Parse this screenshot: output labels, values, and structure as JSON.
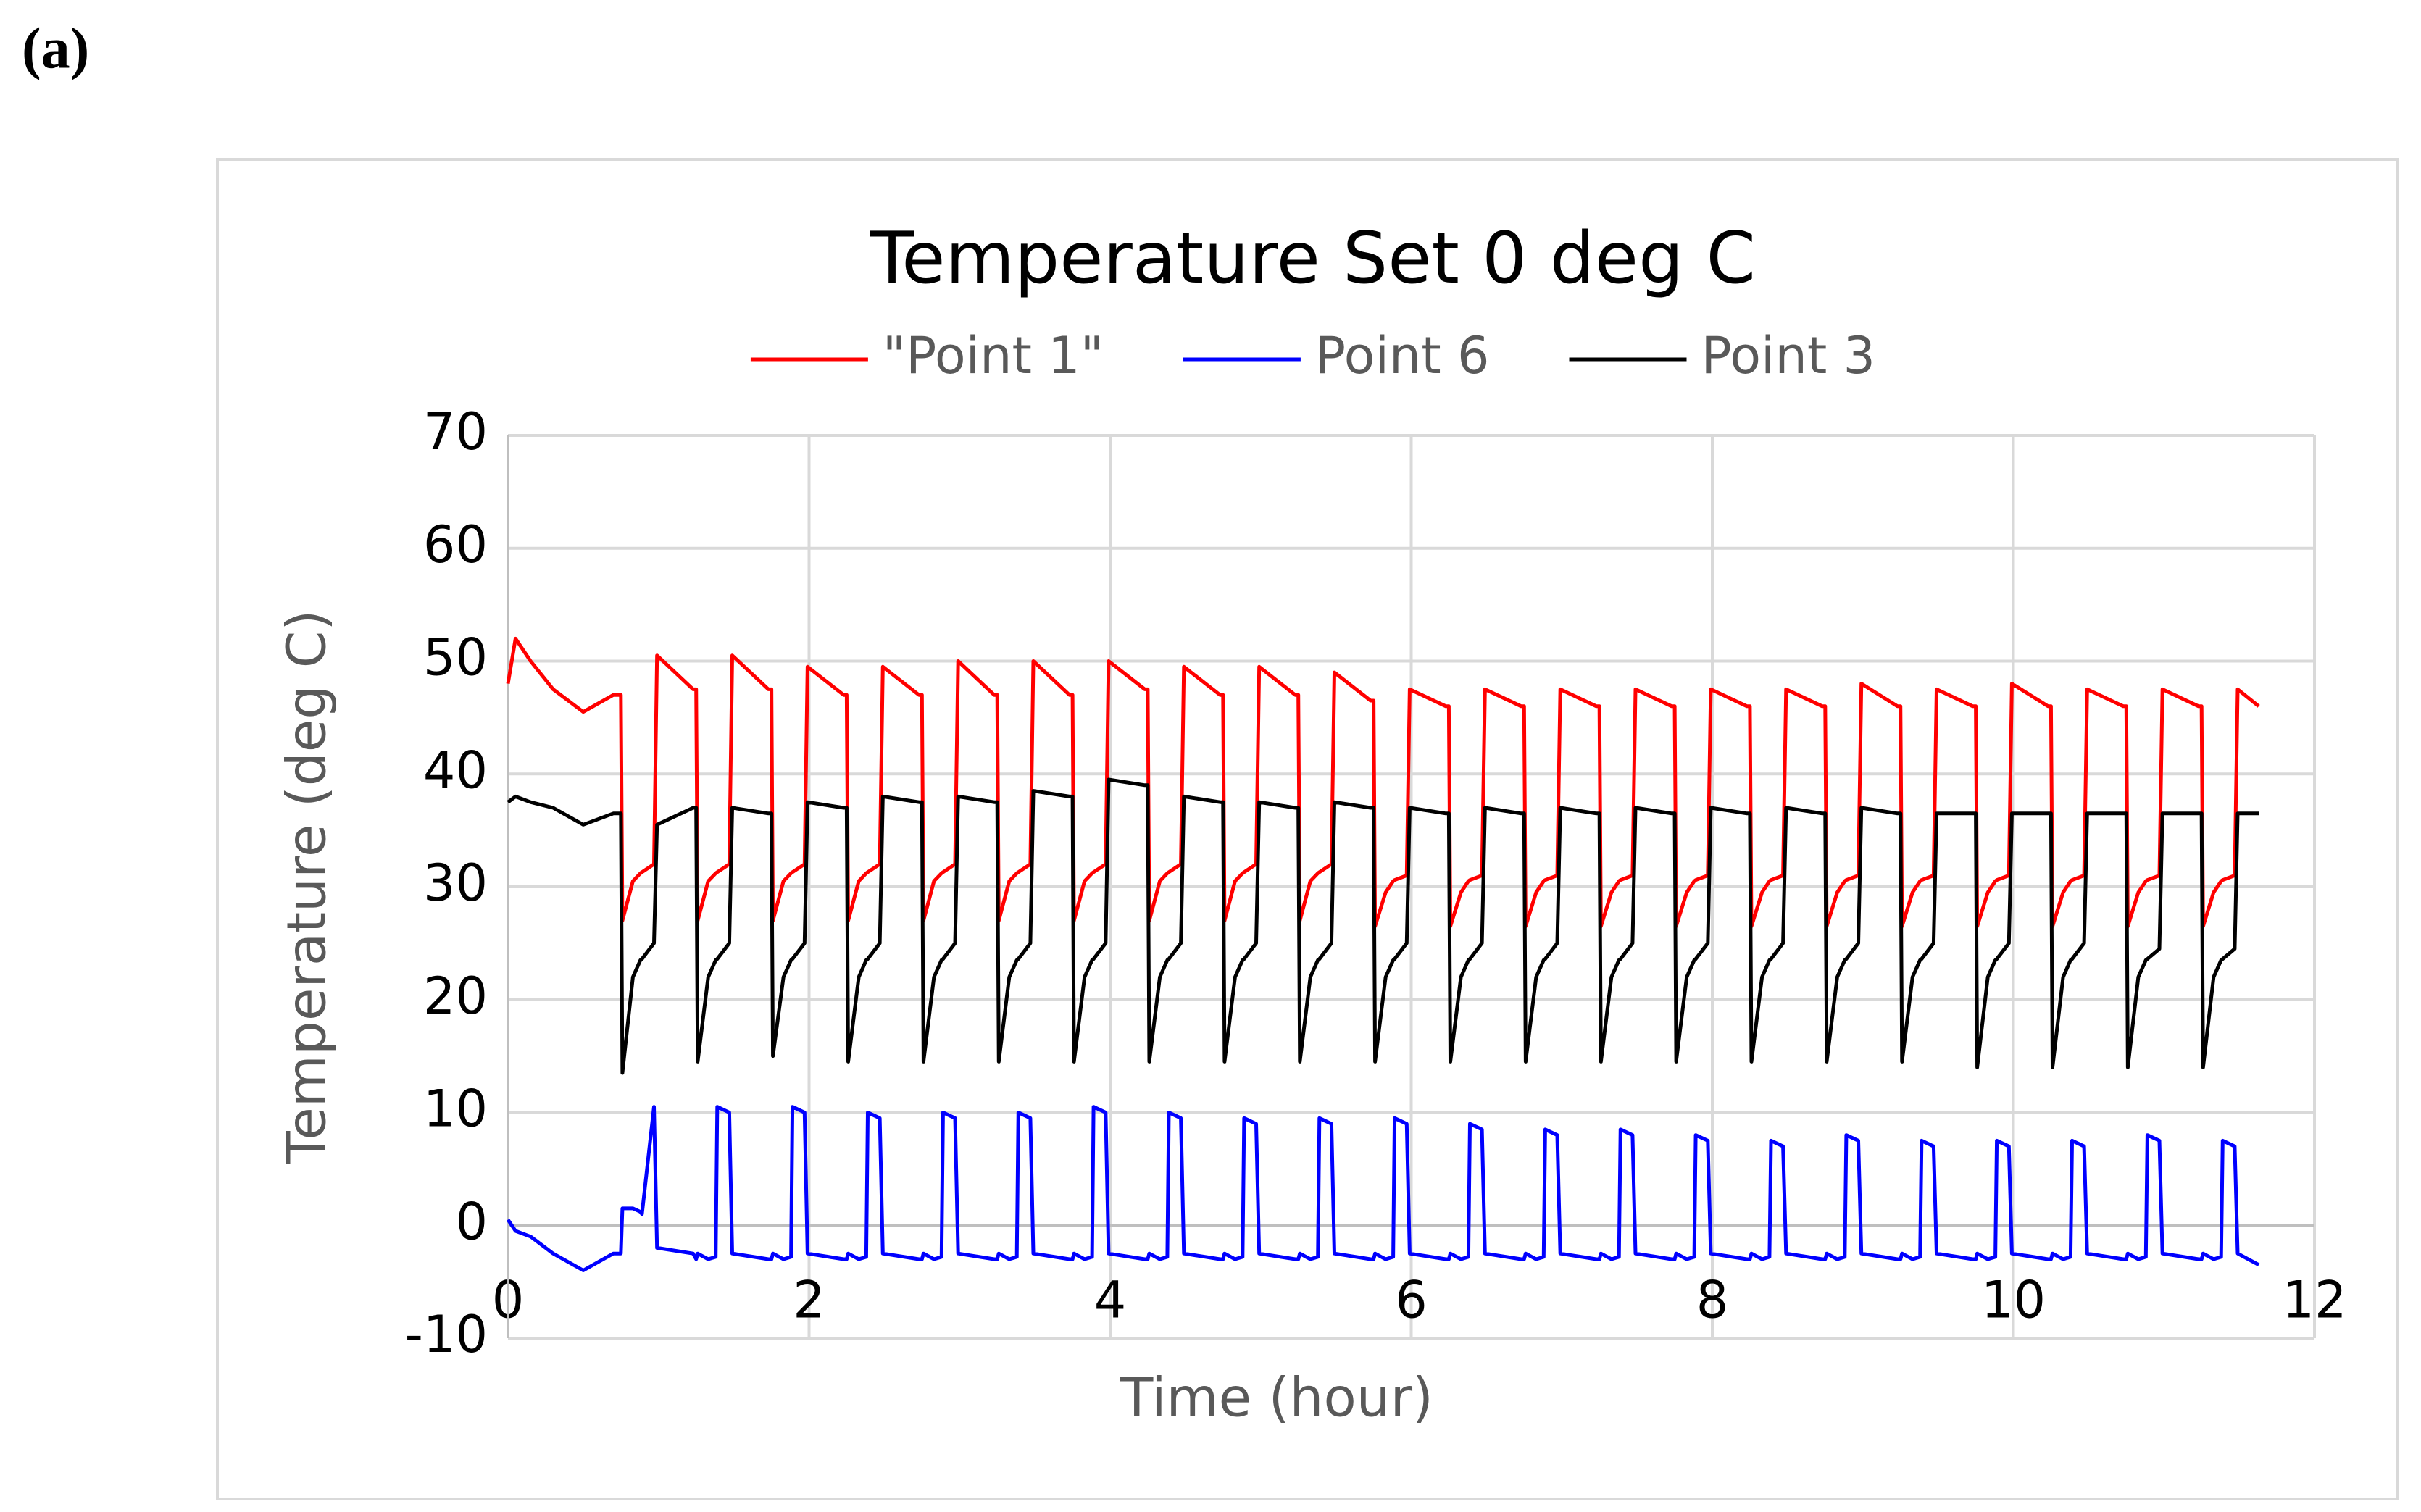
{
  "panel_label": "(a)",
  "chart_data": {
    "type": "line",
    "title": "Temperature  Set 0 deg C",
    "x_label": "Time (hour)",
    "y_label": "Temperature (deg C)",
    "legend": "top",
    "grid": true,
    "xlim": [
      0,
      12
    ],
    "xticks": [
      0,
      2,
      4,
      6,
      8,
      10,
      12
    ],
    "ylim": [
      -10,
      70
    ],
    "yticks": [
      -10,
      0,
      10,
      20,
      30,
      40,
      50,
      60,
      70
    ],
    "x": [
      0,
      0.05,
      0.15,
      0.3,
      0.5,
      0.7,
      0.75,
      0.76,
      0.83,
      0.88,
      0.89,
      0.97,
      0.99,
      1.23,
      1.25,
      1.26,
      1.33,
      1.38,
      1.39,
      1.47,
      1.49,
      1.73,
      1.75,
      1.76,
      1.83,
      1.88,
      1.89,
      1.97,
      1.99,
      2.23,
      2.25,
      2.26,
      2.33,
      2.38,
      2.39,
      2.47,
      2.49,
      2.73,
      2.75,
      2.76,
      2.83,
      2.88,
      2.89,
      2.97,
      2.99,
      3.23,
      3.25,
      3.26,
      3.33,
      3.38,
      3.39,
      3.47,
      3.49,
      3.73,
      3.75,
      3.76,
      3.83,
      3.88,
      3.89,
      3.97,
      3.99,
      4.23,
      4.25,
      4.26,
      4.33,
      4.38,
      4.39,
      4.47,
      4.49,
      4.73,
      4.75,
      4.76,
      4.83,
      4.88,
      4.89,
      4.97,
      4.99,
      5.23,
      5.25,
      5.26,
      5.33,
      5.38,
      5.39,
      5.47,
      5.49,
      5.73,
      5.75,
      5.76,
      5.83,
      5.88,
      5.89,
      5.97,
      5.99,
      6.23,
      6.25,
      6.26,
      6.33,
      6.38,
      6.39,
      6.47,
      6.49,
      6.73,
      6.75,
      6.76,
      6.83,
      6.88,
      6.89,
      6.97,
      6.99,
      7.23,
      7.25,
      7.26,
      7.33,
      7.38,
      7.39,
      7.47,
      7.49,
      7.73,
      7.75,
      7.76,
      7.83,
      7.88,
      7.89,
      7.97,
      7.99,
      8.23,
      8.25,
      8.26,
      8.33,
      8.38,
      8.39,
      8.47,
      8.49,
      8.73,
      8.75,
      8.76,
      8.83,
      8.88,
      8.89,
      8.97,
      8.99,
      9.23,
      9.25,
      9.26,
      9.33,
      9.38,
      9.39,
      9.47,
      9.49,
      9.73,
      9.75,
      9.76,
      9.83,
      9.88,
      9.89,
      9.97,
      9.99,
      10.23,
      10.25,
      10.26,
      10.33,
      10.38,
      10.39,
      10.47,
      10.49,
      10.73,
      10.75,
      10.76,
      10.83,
      10.88,
      10.89,
      10.97,
      10.99,
      11.23,
      11.25,
      11.26,
      11.33,
      11.38,
      11.39,
      11.47,
      11.49,
      11.63
    ],
    "series": [
      {
        "name": "\"Point 1\"",
        "color": "#ff0000",
        "values": [
          48,
          52,
          50,
          47.5,
          45.5,
          47,
          47,
          27,
          30.5,
          31.2,
          31.3,
          32,
          50.5,
          47.5,
          47.5,
          27,
          30.5,
          31.2,
          31.3,
          32,
          50.5,
          47.5,
          47.5,
          27,
          30.5,
          31.2,
          31.3,
          32,
          49.5,
          47,
          47,
          27,
          30.5,
          31.2,
          31.3,
          32,
          49.5,
          47,
          47,
          27,
          30.5,
          31.2,
          31.3,
          32,
          50,
          47,
          47,
          27,
          30.5,
          31.2,
          31.3,
          32,
          50,
          47,
          47,
          27,
          30.5,
          31.2,
          31.3,
          32,
          50,
          47.5,
          47.5,
          27,
          30.5,
          31.2,
          31.3,
          32,
          49.5,
          47,
          47,
          27,
          30.5,
          31.2,
          31.3,
          32,
          49.5,
          47,
          47,
          27,
          30.5,
          31.2,
          31.3,
          32,
          49,
          46.5,
          46.5,
          26.5,
          29.5,
          30.5,
          30.6,
          31,
          47.5,
          46,
          46,
          26.5,
          29.5,
          30.5,
          30.6,
          31,
          47.5,
          46,
          46,
          26.5,
          29.5,
          30.5,
          30.6,
          31,
          47.5,
          46,
          46,
          26.5,
          29.5,
          30.5,
          30.6,
          31,
          47.5,
          46,
          46,
          26.5,
          29.5,
          30.5,
          30.6,
          31,
          47.5,
          46,
          46,
          26.5,
          29.5,
          30.5,
          30.6,
          31,
          47.5,
          46,
          46,
          26.5,
          29.5,
          30.5,
          30.6,
          31,
          48,
          46,
          46,
          26.5,
          29.5,
          30.5,
          30.6,
          31,
          47.5,
          46,
          46,
          26.5,
          29.5,
          30.5,
          30.6,
          31,
          48,
          46,
          46,
          26.5,
          29.5,
          30.5,
          30.6,
          31,
          47.5,
          46,
          46,
          26.5,
          29.5,
          30.5,
          30.6,
          31,
          47.5,
          46,
          46,
          26.5,
          29.5,
          30.5,
          30.6,
          31,
          47.5,
          46
        ]
      },
      {
        "name": "Point 6",
        "color": "#0000ff",
        "values": [
          0.5,
          -0.5,
          -1,
          -2.5,
          -4,
          -2.5,
          -2.5,
          1.5,
          1.5,
          1.2,
          1,
          10.5,
          -2,
          -2.5,
          -3,
          -2.5,
          -3,
          -2.8,
          10.5,
          10,
          -2.5,
          -3,
          -3,
          -2.5,
          -3,
          -2.8,
          10.5,
          10,
          -2.5,
          -3,
          -3,
          -2.5,
          -3,
          -2.8,
          10,
          9.5,
          -2.5,
          -3,
          -3,
          -2.5,
          -3,
          -2.8,
          10,
          9.5,
          -2.5,
          -3,
          -3,
          -2.5,
          -3,
          -2.8,
          10,
          9.5,
          -2.5,
          -3,
          -3,
          -2.5,
          -3,
          -2.8,
          10.5,
          10,
          -2.5,
          -3,
          -3,
          -2.5,
          -3,
          -2.8,
          10,
          9.5,
          -2.5,
          -3,
          -3,
          -2.5,
          -3,
          -2.8,
          9.5,
          9,
          -2.5,
          -3,
          -3,
          -2.5,
          -3,
          -2.8,
          9.5,
          9,
          -2.5,
          -3,
          -3,
          -2.5,
          -3,
          -2.8,
          9.5,
          9,
          -2.5,
          -3,
          -3,
          -2.5,
          -3,
          -2.8,
          9,
          8.5,
          -2.5,
          -3,
          -3,
          -2.5,
          -3,
          -2.8,
          8.5,
          8,
          -2.5,
          -3,
          -3,
          -2.5,
          -3,
          -2.8,
          8.5,
          8,
          -2.5,
          -3,
          -3,
          -2.5,
          -3,
          -2.8,
          8,
          7.5,
          -2.5,
          -3,
          -3,
          -2.5,
          -3,
          -2.8,
          7.5,
          7,
          -2.5,
          -3,
          -3,
          -2.5,
          -3,
          -2.8,
          8,
          7.5,
          -2.5,
          -3,
          -3,
          -2.5,
          -3,
          -2.8,
          7.5,
          7,
          -2.5,
          -3,
          -3,
          -2.5,
          -3,
          -2.8,
          7.5,
          7,
          -2.5,
          -3,
          -3,
          -2.5,
          -3,
          -2.8,
          7.5,
          7,
          -2.5,
          -3,
          -3,
          -2.5,
          -3,
          -2.8,
          8,
          7.5,
          -2.5,
          -3,
          -3,
          -2.5,
          -3,
          -2.8,
          7.5,
          7,
          -2.5,
          -3.5
        ]
      },
      {
        "name": "Point 3",
        "color": "#000000",
        "values": [
          37.5,
          38,
          37.5,
          37,
          35.5,
          36.5,
          36.5,
          13.5,
          22,
          23.5,
          23.6,
          25,
          35.5,
          37,
          37,
          14.5,
          22,
          23.5,
          23.6,
          25,
          37,
          36.5,
          36.5,
          15,
          22,
          23.5,
          23.6,
          25,
          37.5,
          37,
          37,
          14.5,
          22,
          23.5,
          23.6,
          25,
          38,
          37.5,
          37.5,
          14.5,
          22,
          23.5,
          23.6,
          25,
          38,
          37.5,
          37.5,
          14.5,
          22,
          23.5,
          23.6,
          25,
          38.5,
          38,
          38,
          14.5,
          22,
          23.5,
          23.6,
          25,
          39.5,
          39,
          39,
          14.5,
          22,
          23.5,
          23.6,
          25,
          38,
          37.5,
          37.5,
          14.5,
          22,
          23.5,
          23.6,
          25,
          37.5,
          37,
          37,
          14.5,
          22,
          23.5,
          23.6,
          25,
          37.5,
          37,
          37,
          14.5,
          22,
          23.5,
          23.6,
          25,
          37,
          36.5,
          36.5,
          14.5,
          22,
          23.5,
          23.6,
          25,
          37,
          36.5,
          36.5,
          14.5,
          22,
          23.5,
          23.6,
          25,
          37,
          36.5,
          36.5,
          14.5,
          22,
          23.5,
          23.6,
          25,
          37,
          36.5,
          36.5,
          14.5,
          22,
          23.5,
          23.6,
          25,
          37,
          36.5,
          36.5,
          14.5,
          22,
          23.5,
          23.6,
          25,
          37,
          36.5,
          36.5,
          14.5,
          22,
          23.5,
          23.6,
          25,
          37,
          36.5,
          36.5,
          14.5,
          22,
          23.5,
          23.6,
          25,
          36.5,
          36.5,
          36.5,
          14,
          22,
          23.5,
          23.6,
          25,
          36.5,
          36.5,
          36.5,
          14,
          22,
          23.5,
          23.6,
          25,
          36.5,
          36.5,
          36.5,
          14,
          22,
          23.5,
          23.6,
          24.5,
          36.5,
          36.5,
          36.5,
          14,
          22,
          23.5,
          23.6,
          24.5,
          36.5,
          36.5
        ]
      }
    ]
  }
}
